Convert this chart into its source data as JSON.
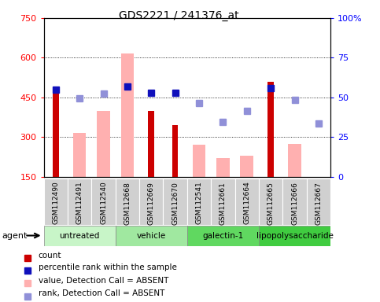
{
  "title": "GDS2221 / 241376_at",
  "samples": [
    "GSM112490",
    "GSM112491",
    "GSM112540",
    "GSM112668",
    "GSM112669",
    "GSM112670",
    "GSM112541",
    "GSM112661",
    "GSM112664",
    "GSM112665",
    "GSM112666",
    "GSM112667"
  ],
  "groups": [
    {
      "label": "untreated",
      "color": "#c8f5c8",
      "indices": [
        0,
        1,
        2
      ]
    },
    {
      "label": "vehicle",
      "color": "#a0e8a0",
      "indices": [
        3,
        4,
        5
      ]
    },
    {
      "label": "galectin-1",
      "color": "#60d860",
      "indices": [
        6,
        7,
        8
      ]
    },
    {
      "label": "lipopolysaccharide",
      "color": "#40cc40",
      "indices": [
        9,
        10,
        11
      ]
    }
  ],
  "count_values": [
    480,
    null,
    null,
    null,
    400,
    345,
    null,
    null,
    null,
    510,
    null,
    null
  ],
  "absent_bar_values": [
    null,
    315,
    400,
    615,
    null,
    null,
    270,
    220,
    230,
    null,
    275,
    145
  ],
  "rank_dot_values": [
    null,
    448,
    463,
    null,
    null,
    null,
    430,
    358,
    400,
    null,
    440,
    350
  ],
  "percentile_present": [
    478,
    null,
    null,
    490,
    467,
    467,
    null,
    null,
    null,
    485,
    null,
    null
  ],
  "ylim_left": [
    150,
    750
  ],
  "ylim_right": [
    0,
    100
  ],
  "yticks_left": [
    150,
    300,
    450,
    600,
    750
  ],
  "yticks_right": [
    0,
    25,
    50,
    75,
    100
  ],
  "count_color": "#cc0000",
  "absent_bar_color": "#ffb0b0",
  "rank_dot_color": "#9090d8",
  "percentile_dot_color": "#1010bb",
  "legend_items": [
    {
      "color": "#cc0000",
      "label": "count",
      "marker": "s"
    },
    {
      "color": "#1010bb",
      "label": "percentile rank within the sample",
      "marker": "s"
    },
    {
      "color": "#ffb0b0",
      "label": "value, Detection Call = ABSENT",
      "marker": "s"
    },
    {
      "color": "#9090d8",
      "label": "rank, Detection Call = ABSENT",
      "marker": "s"
    }
  ]
}
